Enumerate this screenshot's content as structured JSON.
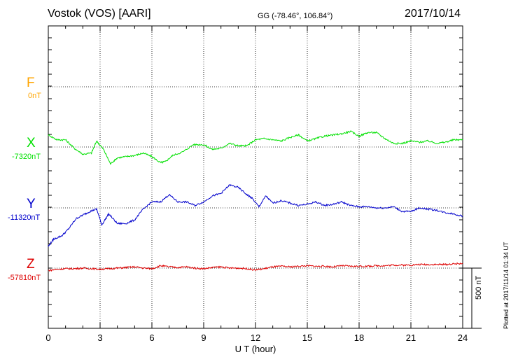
{
  "header": {
    "station": "Vostok (VOS)  [AARI]",
    "coords": "GG (-78.46°, 106.84°)",
    "date": "2017/10/14"
  },
  "plotted_note": "Plotted at 2017/11/14 01:34 UT",
  "scale_bar": {
    "label": "500 nT",
    "value_nT": 500
  },
  "chart_data": {
    "type": "line",
    "xlabel": "U T (hour)",
    "xlim": [
      0,
      24
    ],
    "xticks": [
      "0",
      "3",
      "6",
      "9",
      "12",
      "15",
      "18",
      "21",
      "24"
    ],
    "grid": true,
    "components": [
      {
        "name": "F",
        "baseline_label": "0nT",
        "color": "#ffa500",
        "x": [],
        "y": []
      },
      {
        "name": "X",
        "baseline_label": "-7320nT",
        "color": "#00e000",
        "x": [
          0,
          0.5,
          1,
          1.5,
          2,
          2.5,
          2.8,
          3.2,
          3.6,
          4,
          4.5,
          5,
          5.5,
          6,
          6.5,
          6.8,
          7.2,
          7.8,
          8.4,
          9,
          9.5,
          10,
          10.5,
          11,
          11.5,
          12,
          12.5,
          13,
          13.5,
          14,
          14.5,
          15,
          15.5,
          16,
          16.5,
          17,
          17.5,
          18,
          18.5,
          19,
          19.5,
          20,
          20.5,
          21,
          21.5,
          22,
          22.5,
          23,
          23.5,
          24
        ],
        "y": [
          -7220,
          -7260,
          -7260,
          -7330,
          -7380,
          -7370,
          -7270,
          -7340,
          -7460,
          -7410,
          -7400,
          -7390,
          -7370,
          -7400,
          -7450,
          -7440,
          -7390,
          -7360,
          -7300,
          -7300,
          -7340,
          -7330,
          -7290,
          -7310,
          -7310,
          -7260,
          -7250,
          -7260,
          -7270,
          -7240,
          -7220,
          -7270,
          -7250,
          -7230,
          -7220,
          -7210,
          -7190,
          -7230,
          -7200,
          -7200,
          -7250,
          -7290,
          -7290,
          -7270,
          -7280,
          -7270,
          -7290,
          -7280,
          -7260,
          -7260
        ]
      },
      {
        "name": "Y",
        "baseline_label": "-11320nT",
        "color": "#0000cc",
        "x": [
          0,
          0.3,
          0.8,
          1.2,
          1.6,
          2,
          2.4,
          2.8,
          3.1,
          3.5,
          4,
          4.5,
          5,
          5.5,
          6,
          6.5,
          7,
          7.5,
          8,
          8.5,
          9,
          9.5,
          10,
          10.5,
          11,
          11.5,
          11.8,
          12.2,
          12.6,
          13,
          13.5,
          14,
          14.5,
          15,
          15.5,
          16,
          16.5,
          17,
          17.5,
          18,
          18.5,
          19,
          19.5,
          20,
          20.5,
          21,
          21.5,
          22,
          22.5,
          23,
          23.5,
          24
        ],
        "y": [
          -11640,
          -11580,
          -11550,
          -11490,
          -11410,
          -11380,
          -11350,
          -11330,
          -11460,
          -11370,
          -11450,
          -11450,
          -11420,
          -11330,
          -11270,
          -11270,
          -11210,
          -11270,
          -11270,
          -11300,
          -11270,
          -11220,
          -11200,
          -11130,
          -11150,
          -11210,
          -11240,
          -11310,
          -11220,
          -11280,
          -11260,
          -11280,
          -11300,
          -11290,
          -11270,
          -11300,
          -11290,
          -11270,
          -11300,
          -11310,
          -11310,
          -11320,
          -11320,
          -11310,
          -11350,
          -11350,
          -11320,
          -11330,
          -11340,
          -11360,
          -11370,
          -11390
        ]
      },
      {
        "name": "Z",
        "baseline_label": "-57810nT",
        "color": "#dd0000",
        "x": [
          0,
          0.5,
          1,
          1.5,
          2,
          2.5,
          3,
          3.5,
          4,
          4.5,
          5,
          5.5,
          6,
          6.5,
          7,
          7.5,
          8,
          8.5,
          9,
          9.5,
          10,
          10.5,
          11,
          11.5,
          12,
          12.5,
          13,
          13.5,
          14,
          14.5,
          15,
          15.5,
          16,
          16.5,
          17,
          17.5,
          18,
          18.5,
          19,
          19.5,
          20,
          20.5,
          21,
          21.5,
          22,
          22.5,
          23,
          23.5,
          24
        ],
        "y": [
          -57830,
          -57820,
          -57815,
          -57815,
          -57810,
          -57815,
          -57820,
          -57815,
          -57810,
          -57805,
          -57800,
          -57810,
          -57815,
          -57790,
          -57800,
          -57805,
          -57800,
          -57810,
          -57815,
          -57805,
          -57800,
          -57810,
          -57810,
          -57815,
          -57825,
          -57815,
          -57800,
          -57795,
          -57800,
          -57795,
          -57790,
          -57795,
          -57795,
          -57800,
          -57790,
          -57795,
          -57795,
          -57795,
          -57790,
          -57790,
          -57785,
          -57785,
          -57785,
          -57780,
          -57780,
          -57780,
          -57780,
          -57775,
          -57770
        ]
      }
    ]
  }
}
